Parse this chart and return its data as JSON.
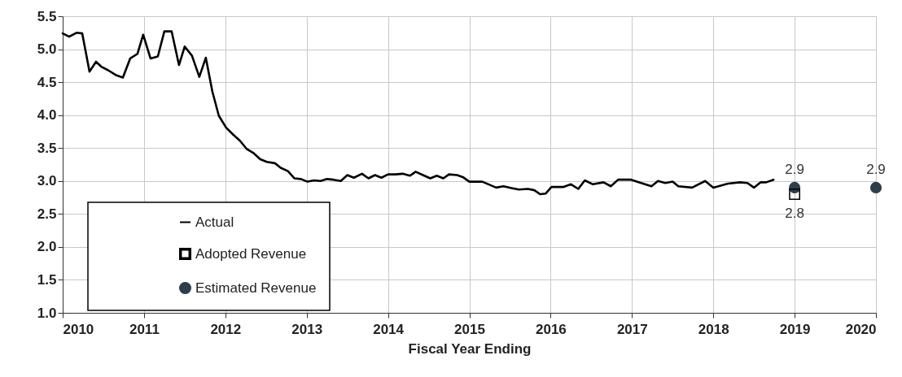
{
  "chart_data": {
    "type": "line",
    "xlabel": "Fiscal Year Ending",
    "xlim": [
      2010,
      2020
    ],
    "xticks": [
      2010,
      2011,
      2012,
      2013,
      2014,
      2015,
      2016,
      2017,
      2018,
      2019,
      2020
    ],
    "ylim": [
      1.0,
      5.5
    ],
    "yticks": [
      {
        "value": 1.0,
        "label": "1.0"
      },
      {
        "value": 1.5,
        "label": "1.5"
      },
      {
        "value": 2.0,
        "label": "2.0"
      },
      {
        "value": 2.5,
        "label": "2.5"
      },
      {
        "value": 3.0,
        "label": "3.0"
      },
      {
        "value": 3.5,
        "label": "3.5"
      },
      {
        "value": 4.0,
        "label": "4.0"
      },
      {
        "value": 4.5,
        "label": "4.5"
      },
      {
        "value": 5.0,
        "label": "5.0"
      },
      {
        "value": 5.5,
        "label": "5.5"
      }
    ],
    "grid": true,
    "legend": "bottom left",
    "series": [
      {
        "name": "Actual",
        "type": "line",
        "marker": "none",
        "line_style": "solid",
        "color": "#000000",
        "x": [
          2010.0,
          2010.08,
          2010.17,
          2010.24,
          2010.33,
          2010.41,
          2010.48,
          2010.56,
          2010.65,
          2010.74,
          2010.83,
          2010.92,
          2010.99,
          2011.08,
          2011.17,
          2011.25,
          2011.34,
          2011.43,
          2011.5,
          2011.59,
          2011.68,
          2011.76,
          2011.84,
          2011.92,
          2012.01,
          2012.1,
          2012.18,
          2012.26,
          2012.35,
          2012.43,
          2012.51,
          2012.61,
          2012.68,
          2012.77,
          2012.85,
          2012.93,
          2013.01,
          2013.09,
          2013.17,
          2013.25,
          2013.33,
          2013.42,
          2013.5,
          2013.58,
          2013.68,
          2013.76,
          2013.84,
          2013.92,
          2014.0,
          2014.09,
          2014.18,
          2014.27,
          2014.34,
          2014.43,
          2014.52,
          2014.6,
          2014.68,
          2014.75,
          2014.85,
          2014.92,
          2015.0,
          2015.16,
          2015.33,
          2015.42,
          2015.53,
          2015.61,
          2015.72,
          2015.8,
          2015.87,
          2015.94,
          2016.01,
          2016.16,
          2016.25,
          2016.34,
          2016.42,
          2016.52,
          2016.65,
          2016.74,
          2016.83,
          2016.99,
          2017.09,
          2017.24,
          2017.32,
          2017.41,
          2017.5,
          2017.57,
          2017.74,
          2017.9,
          2018.0,
          2018.18,
          2018.33,
          2018.42,
          2018.5,
          2018.58,
          2018.65,
          2018.74
        ],
        "values": [
          5.24,
          5.19,
          5.25,
          5.24,
          4.66,
          4.81,
          4.73,
          4.68,
          4.61,
          4.57,
          4.86,
          4.93,
          5.22,
          4.86,
          4.89,
          5.27,
          5.27,
          4.76,
          5.04,
          4.9,
          4.58,
          4.87,
          4.36,
          3.99,
          3.81,
          3.7,
          3.61,
          3.49,
          3.42,
          3.33,
          3.29,
          3.27,
          3.2,
          3.15,
          3.04,
          3.03,
          2.99,
          3.01,
          3.0,
          3.03,
          3.02,
          3.0,
          3.09,
          3.05,
          3.11,
          3.04,
          3.09,
          3.05,
          3.1,
          3.1,
          3.11,
          3.08,
          3.14,
          3.09,
          3.04,
          3.08,
          3.04,
          3.1,
          3.09,
          3.06,
          2.99,
          2.99,
          2.9,
          2.92,
          2.89,
          2.87,
          2.88,
          2.86,
          2.8,
          2.81,
          2.91,
          2.91,
          2.95,
          2.88,
          3.01,
          2.95,
          2.98,
          2.92,
          3.02,
          3.02,
          2.98,
          2.92,
          3.0,
          2.97,
          2.99,
          2.92,
          2.9,
          3.0,
          2.9,
          2.96,
          2.98,
          2.97,
          2.9,
          2.98,
          2.98,
          3.02
        ]
      },
      {
        "name": "Adopted Revenue",
        "type": "scatter",
        "marker": "square",
        "color": "#000000",
        "x": [
          2019
        ],
        "values": [
          2.8
        ],
        "value_labels": [
          "2.8"
        ]
      },
      {
        "name": "Estimated Revenue",
        "type": "scatter",
        "marker": "circle",
        "color": "#2e3d4c",
        "x": [
          2019,
          2020
        ],
        "values": [
          2.9,
          2.9
        ],
        "value_labels": [
          "2.9",
          "2.9"
        ]
      }
    ]
  }
}
